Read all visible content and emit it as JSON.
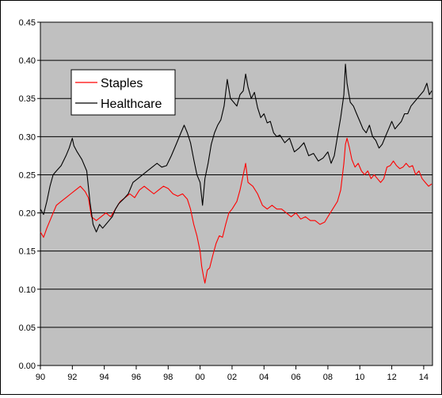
{
  "chart_data": {
    "type": "line",
    "title": "",
    "xlabel": "",
    "ylabel": "",
    "xlim": [
      1990.0,
      2014.55
    ],
    "ylim": [
      0,
      0.45
    ],
    "y_ticks": [
      "0.00",
      "0.05",
      "0.10",
      "0.15",
      "0.20",
      "0.25",
      "0.30",
      "0.35",
      "0.40",
      "0.45"
    ],
    "x_ticks": [
      "90",
      "92",
      "94",
      "96",
      "98",
      "00",
      "02",
      "04",
      "06",
      "08",
      "10",
      "12",
      "14"
    ],
    "grid": "horizontal",
    "background": "#c0c0c0",
    "legend": "top-left",
    "series": [
      {
        "name": "Staples",
        "color": "#ff0000",
        "points": [
          [
            1990.0,
            0.175
          ],
          [
            1990.2,
            0.168
          ],
          [
            1990.4,
            0.18
          ],
          [
            1990.6,
            0.19
          ],
          [
            1990.8,
            0.2
          ],
          [
            1991.0,
            0.21
          ],
          [
            1991.3,
            0.215
          ],
          [
            1991.6,
            0.22
          ],
          [
            1991.9,
            0.225
          ],
          [
            1992.2,
            0.23
          ],
          [
            1992.5,
            0.235
          ],
          [
            1992.8,
            0.228
          ],
          [
            1993.0,
            0.22
          ],
          [
            1993.2,
            0.195
          ],
          [
            1993.5,
            0.19
          ],
          [
            1993.8,
            0.195
          ],
          [
            1994.1,
            0.2
          ],
          [
            1994.4,
            0.195
          ],
          [
            1994.7,
            0.205
          ],
          [
            1995.0,
            0.215
          ],
          [
            1995.3,
            0.22
          ],
          [
            1995.6,
            0.225
          ],
          [
            1995.9,
            0.22
          ],
          [
            1996.2,
            0.23
          ],
          [
            1996.5,
            0.235
          ],
          [
            1996.8,
            0.23
          ],
          [
            1997.1,
            0.225
          ],
          [
            1997.4,
            0.23
          ],
          [
            1997.7,
            0.235
          ],
          [
            1998.0,
            0.232
          ],
          [
            1998.3,
            0.225
          ],
          [
            1998.6,
            0.222
          ],
          [
            1998.9,
            0.225
          ],
          [
            1999.2,
            0.218
          ],
          [
            1999.4,
            0.205
          ],
          [
            1999.6,
            0.185
          ],
          [
            1999.8,
            0.17
          ],
          [
            2000.0,
            0.15
          ],
          [
            2000.1,
            0.13
          ],
          [
            2000.2,
            0.118
          ],
          [
            2000.3,
            0.108
          ],
          [
            2000.45,
            0.125
          ],
          [
            2000.6,
            0.128
          ],
          [
            2000.8,
            0.145
          ],
          [
            2001.0,
            0.16
          ],
          [
            2001.2,
            0.17
          ],
          [
            2001.4,
            0.168
          ],
          [
            2001.6,
            0.185
          ],
          [
            2001.8,
            0.2
          ],
          [
            2002.0,
            0.205
          ],
          [
            2002.3,
            0.215
          ],
          [
            2002.5,
            0.23
          ],
          [
            2002.7,
            0.25
          ],
          [
            2002.85,
            0.265
          ],
          [
            2003.0,
            0.24
          ],
          [
            2003.3,
            0.235
          ],
          [
            2003.6,
            0.225
          ],
          [
            2003.9,
            0.21
          ],
          [
            2004.2,
            0.205
          ],
          [
            2004.5,
            0.21
          ],
          [
            2004.8,
            0.205
          ],
          [
            2005.1,
            0.205
          ],
          [
            2005.4,
            0.2
          ],
          [
            2005.7,
            0.195
          ],
          [
            2006.0,
            0.2
          ],
          [
            2006.3,
            0.192
          ],
          [
            2006.6,
            0.195
          ],
          [
            2006.9,
            0.19
          ],
          [
            2007.2,
            0.19
          ],
          [
            2007.5,
            0.185
          ],
          [
            2007.8,
            0.188
          ],
          [
            2008.0,
            0.195
          ],
          [
            2008.3,
            0.205
          ],
          [
            2008.6,
            0.215
          ],
          [
            2008.8,
            0.23
          ],
          [
            2009.0,
            0.265
          ],
          [
            2009.1,
            0.29
          ],
          [
            2009.2,
            0.298
          ],
          [
            2009.35,
            0.285
          ],
          [
            2009.5,
            0.27
          ],
          [
            2009.7,
            0.26
          ],
          [
            2009.9,
            0.265
          ],
          [
            2010.1,
            0.255
          ],
          [
            2010.3,
            0.25
          ],
          [
            2010.5,
            0.255
          ],
          [
            2010.7,
            0.245
          ],
          [
            2010.9,
            0.25
          ],
          [
            2011.1,
            0.245
          ],
          [
            2011.3,
            0.24
          ],
          [
            2011.5,
            0.245
          ],
          [
            2011.7,
            0.26
          ],
          [
            2011.9,
            0.262
          ],
          [
            2012.1,
            0.268
          ],
          [
            2012.3,
            0.262
          ],
          [
            2012.5,
            0.258
          ],
          [
            2012.7,
            0.26
          ],
          [
            2012.9,
            0.265
          ],
          [
            2013.1,
            0.26
          ],
          [
            2013.3,
            0.262
          ],
          [
            2013.5,
            0.25
          ],
          [
            2013.7,
            0.255
          ],
          [
            2013.9,
            0.245
          ],
          [
            2014.1,
            0.24
          ],
          [
            2014.3,
            0.235
          ],
          [
            2014.5,
            0.238
          ]
        ]
      },
      {
        "name": "Healthcare",
        "color": "#000000",
        "points": [
          [
            1990.0,
            0.205
          ],
          [
            1990.2,
            0.198
          ],
          [
            1990.4,
            0.215
          ],
          [
            1990.6,
            0.235
          ],
          [
            1990.8,
            0.25
          ],
          [
            1991.0,
            0.255
          ],
          [
            1991.3,
            0.262
          ],
          [
            1991.6,
            0.275
          ],
          [
            1991.8,
            0.285
          ],
          [
            1992.0,
            0.298
          ],
          [
            1992.1,
            0.288
          ],
          [
            1992.3,
            0.28
          ],
          [
            1992.6,
            0.27
          ],
          [
            1992.9,
            0.255
          ],
          [
            1993.1,
            0.215
          ],
          [
            1993.3,
            0.185
          ],
          [
            1993.5,
            0.175
          ],
          [
            1993.7,
            0.185
          ],
          [
            1993.9,
            0.18
          ],
          [
            1994.1,
            0.185
          ],
          [
            1994.3,
            0.19
          ],
          [
            1994.5,
            0.195
          ],
          [
            1994.7,
            0.205
          ],
          [
            1994.9,
            0.212
          ],
          [
            1995.2,
            0.218
          ],
          [
            1995.5,
            0.225
          ],
          [
            1995.8,
            0.24
          ],
          [
            1996.1,
            0.245
          ],
          [
            1996.4,
            0.25
          ],
          [
            1996.7,
            0.255
          ],
          [
            1997.0,
            0.26
          ],
          [
            1997.3,
            0.265
          ],
          [
            1997.6,
            0.26
          ],
          [
            1997.9,
            0.262
          ],
          [
            1998.2,
            0.275
          ],
          [
            1998.5,
            0.29
          ],
          [
            1998.8,
            0.305
          ],
          [
            1999.0,
            0.315
          ],
          [
            1999.2,
            0.305
          ],
          [
            1999.4,
            0.292
          ],
          [
            1999.6,
            0.27
          ],
          [
            1999.8,
            0.25
          ],
          [
            2000.0,
            0.24
          ],
          [
            2000.15,
            0.21
          ],
          [
            2000.3,
            0.245
          ],
          [
            2000.5,
            0.265
          ],
          [
            2000.7,
            0.29
          ],
          [
            2000.9,
            0.305
          ],
          [
            2001.1,
            0.315
          ],
          [
            2001.3,
            0.322
          ],
          [
            2001.5,
            0.34
          ],
          [
            2001.7,
            0.375
          ],
          [
            2001.9,
            0.35
          ],
          [
            2002.1,
            0.345
          ],
          [
            2002.3,
            0.34
          ],
          [
            2002.5,
            0.355
          ],
          [
            2002.7,
            0.36
          ],
          [
            2002.85,
            0.382
          ],
          [
            2003.0,
            0.365
          ],
          [
            2003.2,
            0.35
          ],
          [
            2003.4,
            0.358
          ],
          [
            2003.6,
            0.338
          ],
          [
            2003.8,
            0.325
          ],
          [
            2004.0,
            0.33
          ],
          [
            2004.2,
            0.318
          ],
          [
            2004.4,
            0.32
          ],
          [
            2004.6,
            0.305
          ],
          [
            2004.8,
            0.3
          ],
          [
            2005.0,
            0.302
          ],
          [
            2005.3,
            0.292
          ],
          [
            2005.6,
            0.298
          ],
          [
            2005.9,
            0.28
          ],
          [
            2006.2,
            0.285
          ],
          [
            2006.5,
            0.292
          ],
          [
            2006.8,
            0.275
          ],
          [
            2007.1,
            0.278
          ],
          [
            2007.4,
            0.268
          ],
          [
            2007.7,
            0.272
          ],
          [
            2008.0,
            0.28
          ],
          [
            2008.2,
            0.265
          ],
          [
            2008.4,
            0.275
          ],
          [
            2008.6,
            0.3
          ],
          [
            2008.8,
            0.325
          ],
          [
            2009.0,
            0.355
          ],
          [
            2009.1,
            0.395
          ],
          [
            2009.2,
            0.37
          ],
          [
            2009.4,
            0.345
          ],
          [
            2009.6,
            0.34
          ],
          [
            2009.8,
            0.33
          ],
          [
            2010.0,
            0.32
          ],
          [
            2010.2,
            0.31
          ],
          [
            2010.4,
            0.305
          ],
          [
            2010.6,
            0.315
          ],
          [
            2010.8,
            0.3
          ],
          [
            2011.0,
            0.295
          ],
          [
            2011.2,
            0.285
          ],
          [
            2011.4,
            0.29
          ],
          [
            2011.6,
            0.3
          ],
          [
            2011.8,
            0.31
          ],
          [
            2012.0,
            0.32
          ],
          [
            2012.2,
            0.31
          ],
          [
            2012.4,
            0.315
          ],
          [
            2012.6,
            0.32
          ],
          [
            2012.8,
            0.33
          ],
          [
            2013.0,
            0.33
          ],
          [
            2013.2,
            0.34
          ],
          [
            2013.4,
            0.345
          ],
          [
            2013.6,
            0.35
          ],
          [
            2013.8,
            0.355
          ],
          [
            2014.0,
            0.36
          ],
          [
            2014.2,
            0.37
          ],
          [
            2014.35,
            0.355
          ],
          [
            2014.5,
            0.36
          ]
        ]
      }
    ]
  }
}
